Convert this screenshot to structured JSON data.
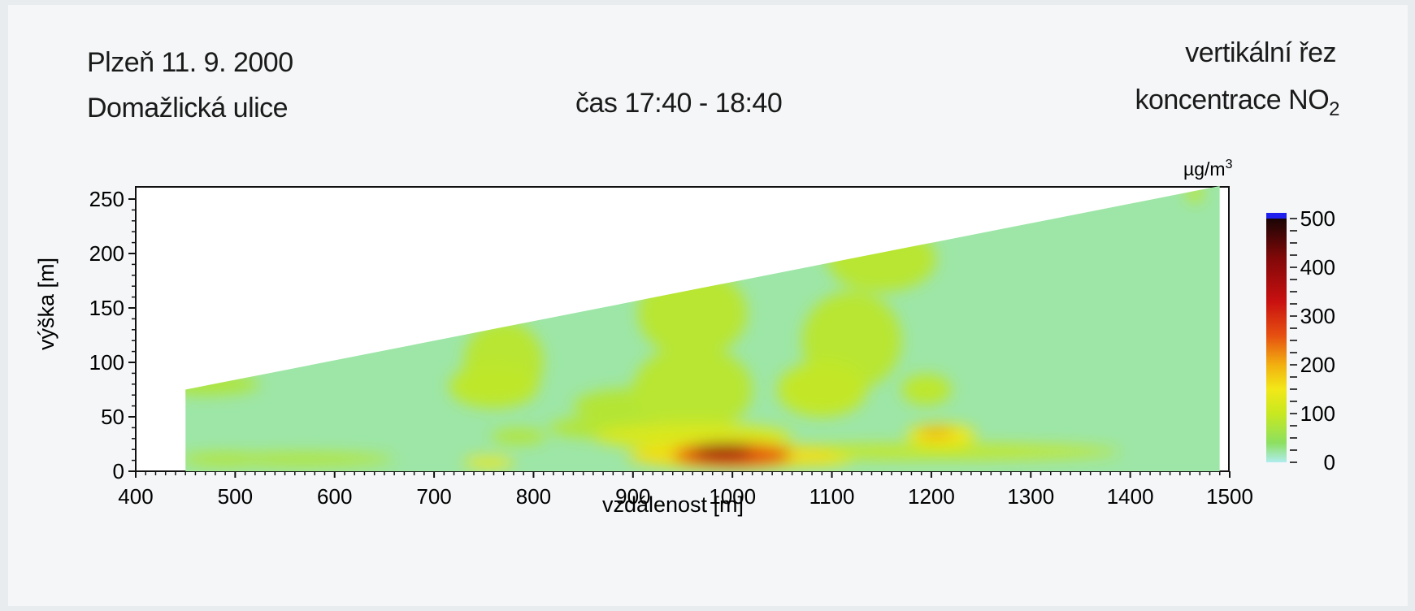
{
  "header": {
    "location": "Plzeň 11. 9. 2000",
    "street": "Domažlická ulice",
    "time": "čas 17:40 - 18:40",
    "section": "vertikální řez",
    "concentration_prefix": "koncentrace NO",
    "concentration_sub": "2"
  },
  "chart_data": {
    "type": "heatmap",
    "xlabel": "vzdálenost [m]",
    "ylabel": "výška [m]",
    "xlim": [
      400,
      1500
    ],
    "ylim": [
      0,
      250
    ],
    "x_ticks": [
      "400",
      "500",
      "600",
      "700",
      "800",
      "900",
      "1000",
      "1100",
      "1200",
      "1300",
      "1400",
      "1500"
    ],
    "y_ticks": [
      "0",
      "50",
      "100",
      "150",
      "200",
      "250"
    ],
    "x_tick_values": [
      400,
      500,
      600,
      700,
      800,
      900,
      1000,
      1100,
      1200,
      1300,
      1400,
      1500
    ],
    "y_tick_values": [
      0,
      50,
      100,
      150,
      200,
      250
    ],
    "domain_outline": [
      [
        450,
        0
      ],
      [
        450,
        75
      ],
      [
        1490,
        262
      ],
      [
        1490,
        0
      ]
    ],
    "background_value": 20,
    "regions": [
      {
        "cx": 490,
        "cy": 11,
        "rx": 45,
        "ry": 6,
        "value": 80
      },
      {
        "cx": 570,
        "cy": 11,
        "rx": 90,
        "ry": 6,
        "value": 80
      },
      {
        "cx": 470,
        "cy": 80,
        "rx": 55,
        "ry": 10,
        "value": 75
      },
      {
        "cx": 755,
        "cy": 8,
        "rx": 25,
        "ry": 5,
        "value": 150
      },
      {
        "cx": 770,
        "cy": 100,
        "rx": 40,
        "ry": 38,
        "value": 85
      },
      {
        "cx": 760,
        "cy": 78,
        "rx": 45,
        "ry": 20,
        "value": 90
      },
      {
        "cx": 785,
        "cy": 32,
        "rx": 28,
        "ry": 7,
        "value": 80
      },
      {
        "cx": 960,
        "cy": 145,
        "rx": 55,
        "ry": 40,
        "value": 85
      },
      {
        "cx": 960,
        "cy": 75,
        "rx": 60,
        "ry": 40,
        "value": 85
      },
      {
        "cx": 900,
        "cy": 60,
        "rx": 60,
        "ry": 16,
        "value": 80
      },
      {
        "cx": 870,
        "cy": 40,
        "rx": 55,
        "ry": 10,
        "value": 80
      },
      {
        "cx": 960,
        "cy": 32,
        "rx": 100,
        "ry": 12,
        "value": 120
      },
      {
        "cx": 1000,
        "cy": 14,
        "rx": 105,
        "ry": 12,
        "value": 160
      },
      {
        "cx": 1000,
        "cy": 15,
        "rx": 60,
        "ry": 11,
        "value": 260
      },
      {
        "cx": 990,
        "cy": 18,
        "rx": 30,
        "ry": 8,
        "value": 380
      },
      {
        "cx": 1080,
        "cy": 11,
        "rx": 40,
        "ry": 6,
        "value": 140
      },
      {
        "cx": 1200,
        "cy": 18,
        "rx": 190,
        "ry": 7,
        "value": 95
      },
      {
        "cx": 1210,
        "cy": 33,
        "rx": 35,
        "ry": 10,
        "value": 150
      },
      {
        "cx": 1205,
        "cy": 35,
        "rx": 18,
        "ry": 5,
        "value": 200
      },
      {
        "cx": 1150,
        "cy": 195,
        "rx": 55,
        "ry": 30,
        "value": 85
      },
      {
        "cx": 1120,
        "cy": 120,
        "rx": 50,
        "ry": 45,
        "value": 85
      },
      {
        "cx": 1090,
        "cy": 75,
        "rx": 45,
        "ry": 25,
        "value": 95
      },
      {
        "cx": 1195,
        "cy": 75,
        "rx": 25,
        "ry": 14,
        "value": 90
      },
      {
        "cx": 1465,
        "cy": 255,
        "rx": 8,
        "ry": 8,
        "value": 90
      }
    ],
    "colorbar": {
      "label_prefix": "µg/m",
      "label_sup": "3",
      "ticks": [
        "0",
        "100",
        "200",
        "300",
        "400",
        "500"
      ],
      "tick_values": [
        0,
        100,
        200,
        300,
        400,
        500
      ],
      "range": [
        0,
        500
      ],
      "colors": [
        "#aeeced",
        "#8ce060",
        "#c8e820",
        "#f2e818",
        "#f2b010",
        "#e65010",
        "#c81010",
        "#800808",
        "#1a0505"
      ],
      "stops": [
        0,
        40,
        100,
        150,
        200,
        260,
        330,
        420,
        500
      ],
      "overflow_color": "#2020ee"
    }
  }
}
